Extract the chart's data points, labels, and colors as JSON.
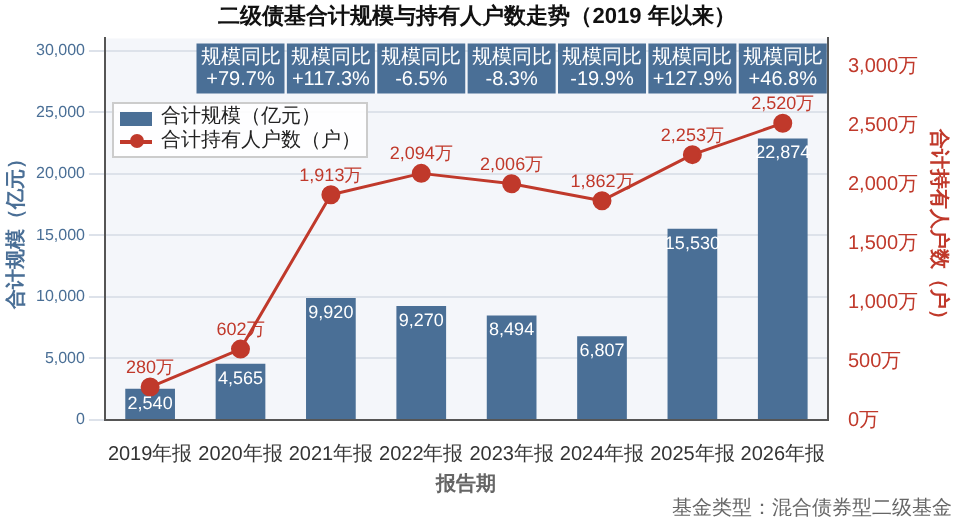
{
  "chart_data": {
    "type": "bar",
    "title": "二级债基合计规模与持有人户数走势（2019 年以来）",
    "xlabel": "报告期",
    "ylabel": "合计规模（亿元）",
    "y2label": "合计持有人户数（户）",
    "categories": [
      "2019年报",
      "2020年报",
      "2021年报",
      "2022年报",
      "2023年报",
      "2024年报",
      "2025年报",
      "2026年报"
    ],
    "series": [
      {
        "name": "合计规模（亿元）",
        "color": "#4a6f96",
        "values": [
          2540,
          4565,
          9920,
          9270,
          8494,
          6807,
          15530,
          22874
        ],
        "value_labels": [
          "2,540",
          "4,565",
          "9,920",
          "9,270",
          "8,494",
          "6,807",
          "15,530",
          "22,874"
        ]
      },
      {
        "name": "合计持有人户数（户）",
        "type": "line",
        "axis": "y2",
        "color": "#c0392b",
        "values": [
          280,
          602,
          1913,
          2094,
          2006,
          1862,
          2253,
          2520
        ],
        "value_labels": [
          "280万",
          "602万",
          "1,913万",
          "2,094万",
          "2,006万",
          "1,862万",
          "2,253万",
          "2,520万"
        ]
      }
    ],
    "ylim": [
      0,
      31000
    ],
    "yticks": [
      0,
      {
        "value": 5000,
        "label": "5,000"
      },
      {
        "value": 10000,
        "label": "10,000"
      },
      {
        "value": 15000,
        "label": "15,000"
      },
      {
        "value": 20000,
        "label": "20,000"
      },
      {
        "value": 25000,
        "label": "25,000"
      },
      {
        "value": 30000,
        "label": "30,000"
      }
    ],
    "y2lim": [
      0,
      3240
    ],
    "y2ticks": [
      {
        "value": 0,
        "label": "0万"
      },
      {
        "value": 500,
        "label": "500万"
      },
      {
        "value": 1000,
        "label": "1,000万"
      },
      {
        "value": 1500,
        "label": "1,500万"
      },
      {
        "value": 2000,
        "label": "2,000万"
      },
      {
        "value": 2500,
        "label": "2,500万"
      },
      {
        "value": 3000,
        "label": "3,000万"
      }
    ],
    "grid": "y",
    "legend": "top left",
    "marker": "circle",
    "annotations": [
      "规模同比+79.7%",
      "规模同比+117.3%",
      "规模同比-6.5%",
      "规模同比-8.3%",
      "规模同比-19.9%",
      "规模同比+127.9%",
      "规模同比+46.8%",
      "基金类型：混合债券型二级基金"
    ]
  }
}
